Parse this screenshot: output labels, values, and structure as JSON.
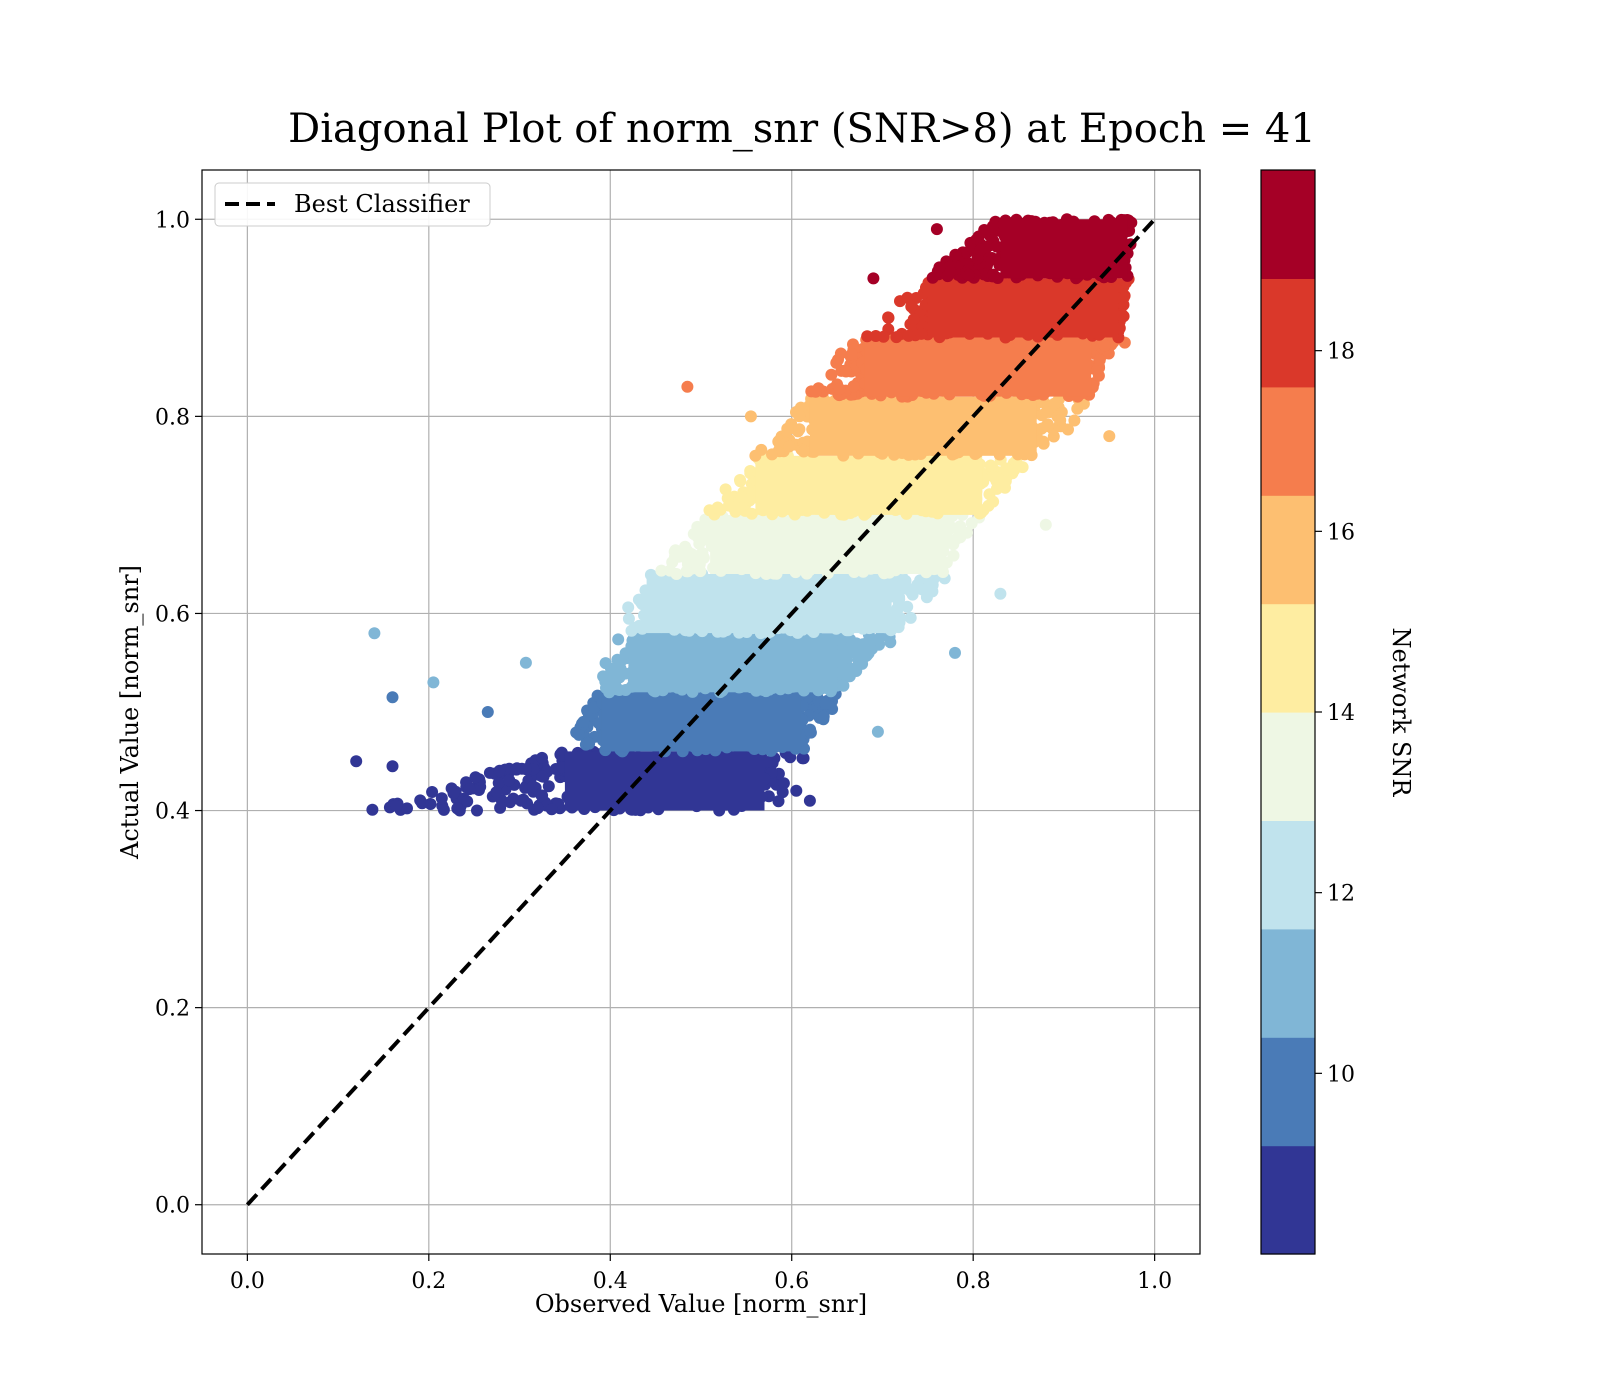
{
  "chart_data": {
    "type": "scatter",
    "title": "Diagonal Plot of norm_snr (SNR>8) at Epoch = 41",
    "xlabel": "Observed Value [norm_snr]",
    "ylabel": "Actual Value [norm_snr]",
    "xlim": [
      -0.05,
      1.05
    ],
    "ylim": [
      -0.05,
      1.05
    ],
    "xticks": [
      "0.0",
      "0.2",
      "0.4",
      "0.6",
      "0.8",
      "1.0"
    ],
    "yticks": [
      "0.0",
      "0.2",
      "0.4",
      "0.6",
      "0.8",
      "1.0"
    ],
    "grid": true,
    "legend": {
      "placement": "upper-left",
      "entries": [
        "Best Classifier"
      ]
    },
    "reference_line": {
      "name": "Best Classifier",
      "style": "dashed",
      "color": "#000000",
      "x": [
        0,
        1
      ],
      "y": [
        0,
        1
      ]
    },
    "colorbar": {
      "label": "Network SNR",
      "range": [
        8,
        20
      ],
      "ticks": [
        "10",
        "12",
        "14",
        "16",
        "18"
      ],
      "tick_values": [
        10,
        12,
        14,
        16,
        18
      ],
      "bins": [
        {
          "range": [
            8.0,
            9.2
          ],
          "color": "#313695"
        },
        {
          "range": [
            9.2,
            10.4
          ],
          "color": "#4a7bb7"
        },
        {
          "range": [
            10.4,
            11.6
          ],
          "color": "#80b6d6"
        },
        {
          "range": [
            11.6,
            12.8
          ],
          "color": "#c0e3ed"
        },
        {
          "range": [
            12.8,
            14.0
          ],
          "color": "#eef7e4"
        },
        {
          "range": [
            14.0,
            15.2
          ],
          "color": "#feeda1"
        },
        {
          "range": [
            15.2,
            16.4
          ],
          "color": "#fdbf71"
        },
        {
          "range": [
            16.4,
            17.6
          ],
          "color": "#f57d4d"
        },
        {
          "range": [
            17.6,
            18.8
          ],
          "color": "#da382a"
        },
        {
          "range": [
            18.8,
            20.0
          ],
          "color": "#a50026"
        }
      ]
    },
    "bands": [
      {
        "y": [
          0.4,
          0.46
        ],
        "x_min": [
          0.12,
          0.34
        ],
        "x_max": [
          0.58,
          0.62
        ],
        "color": "#313695"
      },
      {
        "y": [
          0.46,
          0.52
        ],
        "x_min": [
          0.34,
          0.38
        ],
        "x_max": [
          0.62,
          0.66
        ],
        "color": "#4a7bb7"
      },
      {
        "y": [
          0.52,
          0.58
        ],
        "x_min": [
          0.38,
          0.41
        ],
        "x_max": [
          0.66,
          0.72
        ],
        "color": "#80b6d6"
      },
      {
        "y": [
          0.58,
          0.64
        ],
        "x_min": [
          0.41,
          0.43
        ],
        "x_max": [
          0.72,
          0.78
        ],
        "color": "#c0e3ed"
      },
      {
        "y": [
          0.64,
          0.7
        ],
        "x_min": [
          0.43,
          0.5
        ],
        "x_max": [
          0.78,
          0.82
        ],
        "color": "#eef7e4"
      },
      {
        "y": [
          0.7,
          0.76
        ],
        "x_min": [
          0.5,
          0.55
        ],
        "x_max": [
          0.82,
          0.88
        ],
        "color": "#feeda1"
      },
      {
        "y": [
          0.76,
          0.82
        ],
        "x_min": [
          0.55,
          0.61
        ],
        "x_max": [
          0.88,
          0.94
        ],
        "color": "#fdbf71"
      },
      {
        "y": [
          0.82,
          0.88
        ],
        "x_min": [
          0.61,
          0.67
        ],
        "x_max": [
          0.94,
          0.97
        ],
        "color": "#f57d4d"
      },
      {
        "y": [
          0.88,
          0.94
        ],
        "x_min": [
          0.67,
          0.74
        ],
        "x_max": [
          0.97,
          0.98
        ],
        "color": "#da382a"
      },
      {
        "y": [
          0.94,
          1.0
        ],
        "x_min": [
          0.74,
          0.82
        ],
        "x_max": [
          0.98,
          0.98
        ],
        "color": "#a50026"
      }
    ],
    "outliers": [
      {
        "x": 0.12,
        "y": 0.45,
        "color": "#313695"
      },
      {
        "x": 0.16,
        "y": 0.445,
        "color": "#313695"
      },
      {
        "x": 0.14,
        "y": 0.58,
        "color": "#80b6d6"
      },
      {
        "x": 0.16,
        "y": 0.515,
        "color": "#4a7bb7"
      },
      {
        "x": 0.205,
        "y": 0.53,
        "color": "#80b6d6"
      },
      {
        "x": 0.307,
        "y": 0.55,
        "color": "#80b6d6"
      },
      {
        "x": 0.265,
        "y": 0.5,
        "color": "#4a7bb7"
      },
      {
        "x": 0.485,
        "y": 0.83,
        "color": "#f57d4d"
      },
      {
        "x": 0.555,
        "y": 0.8,
        "color": "#fdbf71"
      },
      {
        "x": 0.695,
        "y": 0.48,
        "color": "#80b6d6"
      },
      {
        "x": 0.78,
        "y": 0.56,
        "color": "#80b6d6"
      },
      {
        "x": 0.83,
        "y": 0.62,
        "color": "#c0e3ed"
      },
      {
        "x": 0.88,
        "y": 0.69,
        "color": "#eef7e4"
      },
      {
        "x": 0.62,
        "y": 0.41,
        "color": "#313695"
      },
      {
        "x": 0.605,
        "y": 0.42,
        "color": "#313695"
      },
      {
        "x": 0.69,
        "y": 0.94,
        "color": "#a50026"
      },
      {
        "x": 0.76,
        "y": 0.99,
        "color": "#a50026"
      },
      {
        "x": 0.95,
        "y": 0.78,
        "color": "#fdbf71"
      }
    ]
  }
}
